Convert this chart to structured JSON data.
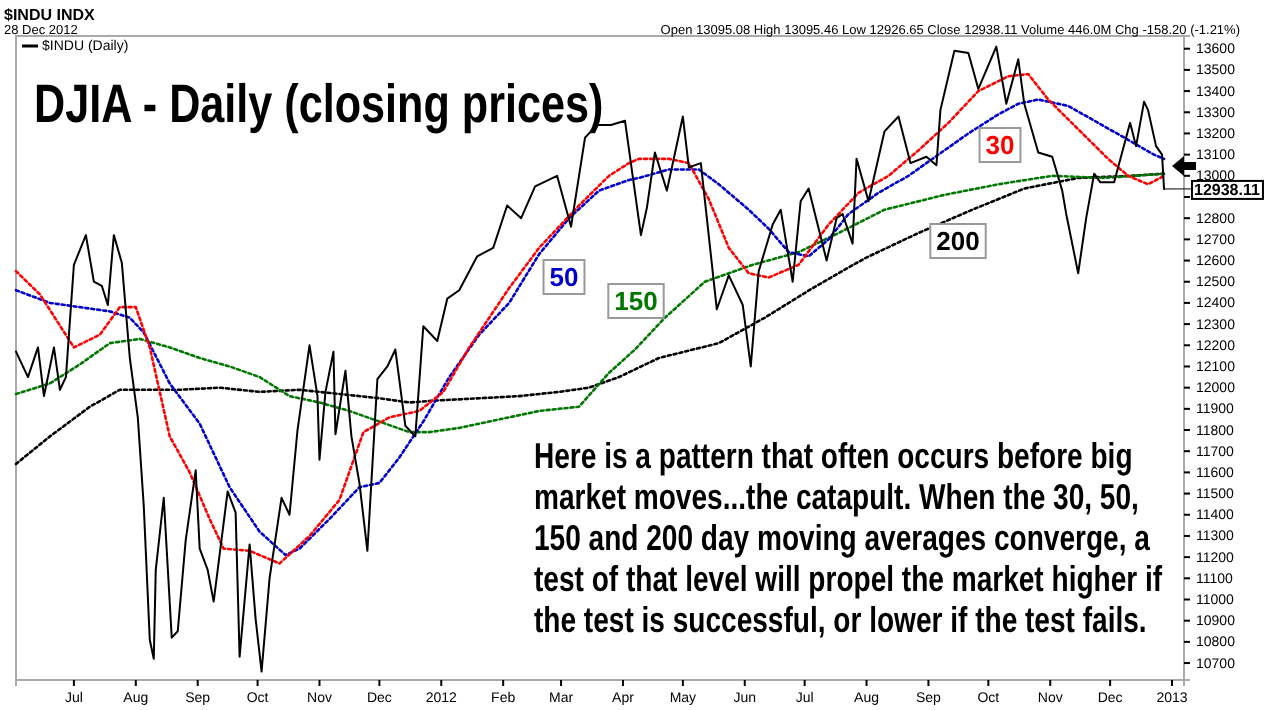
{
  "chart_data": {
    "type": "line",
    "title": "DJIA - Daily (closing prices)",
    "legend": "top left",
    "xlim": [
      "2011-06-02",
      "2013-01-07"
    ],
    "ylim": [
      10620,
      13660
    ],
    "xticks": [
      {
        "value": "2011-07-01",
        "label": "Jul"
      },
      {
        "value": "2011-08-01",
        "label": "Aug"
      },
      {
        "value": "2011-09-01",
        "label": "Sep"
      },
      {
        "value": "2011-10-01",
        "label": "Oct"
      },
      {
        "value": "2011-11-01",
        "label": "Nov"
      },
      {
        "value": "2011-12-01",
        "label": "Dec"
      },
      {
        "value": "2012-01-01",
        "label": "2012"
      },
      {
        "value": "2012-02-01",
        "label": "Feb"
      },
      {
        "value": "2012-03-01",
        "label": "Mar"
      },
      {
        "value": "2012-04-01",
        "label": "Apr"
      },
      {
        "value": "2012-05-01",
        "label": "May"
      },
      {
        "value": "2012-06-01",
        "label": "Jun"
      },
      {
        "value": "2012-07-01",
        "label": "Jul"
      },
      {
        "value": "2012-08-01",
        "label": "Aug"
      },
      {
        "value": "2012-09-01",
        "label": "Sep"
      },
      {
        "value": "2012-10-01",
        "label": "Oct"
      },
      {
        "value": "2012-11-01",
        "label": "Nov"
      },
      {
        "value": "2012-12-01",
        "label": "Dec"
      },
      {
        "value": "2013-01-01",
        "label": "2013"
      }
    ],
    "yticks": [
      10700,
      10800,
      10900,
      11000,
      11100,
      11200,
      11300,
      11400,
      11500,
      11600,
      11700,
      11800,
      11900,
      12000,
      12100,
      12200,
      12300,
      12400,
      12500,
      12600,
      12700,
      12800,
      {
        "value": 12900,
        "label": null
      },
      13000,
      13100,
      13200,
      13300,
      13400,
      13500,
      13600
    ],
    "annotations": [
      "$INDU INDX",
      "28 Dec 2012",
      "Open 13095.08 High 13095.46 Low 12926.65 Close 12938.11 Volume 446.0M Chg -158.20 (-1.21%)",
      "Here is a pattern that often occurs before big market moves...the catapult.  When the 30, 50, 150 and 200 day moving averages converge, a test of that level will propel the market higher if the test is successful, or lower if the test fails.",
      {
        "text": "12938.11",
        "x": "2012-12-28",
        "y": 12938.11
      }
    ],
    "series": [
      {
        "name": "$INDU (Daily)",
        "color": "#000000",
        "line_style": "solid",
        "x": [
          "2011-06-02",
          "2011-06-08",
          "2011-06-13",
          "2011-06-16",
          "2011-06-21",
          "2011-06-24",
          "2011-06-27",
          "2011-07-01",
          "2011-07-07",
          "2011-07-11",
          "2011-07-15",
          "2011-07-18",
          "2011-07-21",
          "2011-07-25",
          "2011-07-29",
          "2011-08-02",
          "2011-08-05",
          "2011-08-08",
          "2011-08-10",
          "2011-08-11",
          "2011-08-15",
          "2011-08-19",
          "2011-08-22",
          "2011-08-26",
          "2011-08-31",
          "2011-09-02",
          "2011-09-06",
          "2011-09-09",
          "2011-09-16",
          "2011-09-20",
          "2011-09-22",
          "2011-09-27",
          "2011-09-30",
          "2011-10-03",
          "2011-10-07",
          "2011-10-13",
          "2011-10-17",
          "2011-10-21",
          "2011-10-27",
          "2011-10-31",
          "2011-11-01",
          "2011-11-04",
          "2011-11-08",
          "2011-11-09",
          "2011-11-14",
          "2011-11-17",
          "2011-11-21",
          "2011-11-25",
          "2011-11-30",
          "2011-12-05",
          "2011-12-09",
          "2011-12-14",
          "2011-12-19",
          "2011-12-23",
          "2011-12-30",
          "2012-01-04",
          "2012-01-10",
          "2012-01-19",
          "2012-01-27",
          "2012-02-03",
          "2012-02-10",
          "2012-02-17",
          "2012-02-28",
          "2012-03-06",
          "2012-03-13",
          "2012-03-19",
          "2012-03-26",
          "2012-04-02",
          "2012-04-10",
          "2012-04-13",
          "2012-04-17",
          "2012-04-23",
          "2012-05-01",
          "2012-05-04",
          "2012-05-10",
          "2012-05-18",
          "2012-05-24",
          "2012-05-31",
          "2012-06-04",
          "2012-06-08",
          "2012-06-15",
          "2012-06-19",
          "2012-06-25",
          "2012-06-29",
          "2012-07-03",
          "2012-07-12",
          "2012-07-17",
          "2012-07-20",
          "2012-07-25",
          "2012-07-27",
          "2012-08-02",
          "2012-08-10",
          "2012-08-17",
          "2012-08-23",
          "2012-08-31",
          "2012-09-05",
          "2012-09-07",
          "2012-09-14",
          "2012-09-21",
          "2012-09-26",
          "2012-10-05",
          "2012-10-10",
          "2012-10-16",
          "2012-10-19",
          "2012-10-26",
          "2012-11-02",
          "2012-11-07",
          "2012-11-09",
          "2012-11-15",
          "2012-11-19",
          "2012-11-23",
          "2012-11-26",
          "2012-12-03",
          "2012-12-11",
          "2012-12-14",
          "2012-12-18",
          "2012-12-20",
          "2012-12-24",
          "2012-12-27",
          "2012-12-28"
        ],
        "values": [
          12170,
          12050,
          12190,
          11960,
          12190,
          11990,
          12050,
          12580,
          12720,
          12500,
          12480,
          12390,
          12720,
          12590,
          12140,
          11860,
          11440,
          10810,
          10720,
          11140,
          11480,
          10820,
          10850,
          11280,
          11610,
          11240,
          11140,
          10990,
          11510,
          11410,
          10730,
          11260,
          10910,
          10660,
          11100,
          11480,
          11400,
          11800,
          12200,
          11960,
          11660,
          11980,
          12170,
          11780,
          12080,
          11770,
          11550,
          11230,
          12040,
          12100,
          12180,
          11820,
          11770,
          12290,
          12220,
          12420,
          12460,
          12620,
          12660,
          12860,
          12800,
          12950,
          13000,
          12760,
          13180,
          13240,
          13240,
          13260,
          12720,
          12850,
          13110,
          12930,
          13280,
          13040,
          13060,
          12370,
          12530,
          12390,
          12100,
          12550,
          12770,
          12840,
          12500,
          12880,
          12940,
          12600,
          12800,
          12820,
          12680,
          13080,
          12880,
          13210,
          13280,
          13060,
          13090,
          13050,
          13310,
          13590,
          13580,
          13410,
          13610,
          13340,
          13550,
          13340,
          13110,
          13090,
          12930,
          12820,
          12540,
          12800,
          13010,
          12970,
          12970,
          13250,
          13140,
          13350,
          13310,
          13140,
          13100,
          12938.11
        ]
      },
      {
        "name": "30",
        "color": "#ff0000",
        "line_style": "dotted",
        "x": [
          "2011-06-02",
          "2011-06-14",
          "2011-07-01",
          "2011-07-14",
          "2011-07-24",
          "2011-08-01",
          "2011-08-08",
          "2011-08-18",
          "2011-08-28",
          "2011-09-07",
          "2011-09-14",
          "2011-09-27",
          "2011-10-12",
          "2011-10-27",
          "2011-11-11",
          "2011-11-23",
          "2011-12-06",
          "2011-12-21",
          "2012-01-02",
          "2012-01-15",
          "2012-02-04",
          "2012-02-19",
          "2012-03-10",
          "2012-03-25",
          "2012-04-04",
          "2012-04-09",
          "2012-04-24",
          "2012-05-04",
          "2012-05-14",
          "2012-05-24",
          "2012-06-03",
          "2012-06-13",
          "2012-06-28",
          "2012-07-13",
          "2012-07-28",
          "2012-08-12",
          "2012-08-27",
          "2012-09-11",
          "2012-09-26",
          "2012-10-11",
          "2012-10-21",
          "2012-10-31",
          "2012-11-15",
          "2012-11-30",
          "2012-12-10",
          "2012-12-20",
          "2012-12-28"
        ],
        "values": [
          12550,
          12440,
          12190,
          12250,
          12380,
          12380,
          12190,
          11770,
          11600,
          11380,
          11240,
          11230,
          11170,
          11300,
          11470,
          11790,
          11860,
          11890,
          11980,
          12190,
          12470,
          12660,
          12860,
          13000,
          13060,
          13080,
          13080,
          13060,
          12890,
          12660,
          12540,
          12520,
          12580,
          12770,
          12920,
          13000,
          13120,
          13250,
          13400,
          13470,
          13480,
          13360,
          13220,
          13080,
          13000,
          12960,
          13000
        ]
      },
      {
        "name": "50",
        "color": "#0000cc",
        "line_style": "dotted",
        "x": [
          "2011-06-02",
          "2011-06-19",
          "2011-07-04",
          "2011-07-19",
          "2011-07-29",
          "2011-08-05",
          "2011-08-18",
          "2011-09-02",
          "2011-09-17",
          "2011-10-02",
          "2011-10-15",
          "2011-10-22",
          "2011-11-06",
          "2011-11-21",
          "2011-12-01",
          "2011-12-11",
          "2011-12-23",
          "2012-01-05",
          "2012-01-20",
          "2012-02-04",
          "2012-02-19",
          "2012-03-05",
          "2012-03-20",
          "2012-04-04",
          "2012-04-09",
          "2012-04-24",
          "2012-05-09",
          "2012-05-19",
          "2012-06-03",
          "2012-06-13",
          "2012-06-23",
          "2012-07-03",
          "2012-07-13",
          "2012-07-23",
          "2012-08-07",
          "2012-08-22",
          "2012-09-06",
          "2012-09-21",
          "2012-10-06",
          "2012-10-16",
          "2012-10-26",
          "2012-11-10",
          "2012-11-25",
          "2012-12-10",
          "2012-12-23",
          "2012-12-28"
        ],
        "values": [
          12460,
          12400,
          12380,
          12360,
          12330,
          12260,
          12020,
          11830,
          11530,
          11320,
          11210,
          11240,
          11380,
          11530,
          11550,
          11670,
          11840,
          12050,
          12250,
          12400,
          12630,
          12800,
          12930,
          12980,
          12990,
          13030,
          13030,
          12960,
          12840,
          12750,
          12640,
          12620,
          12700,
          12820,
          12920,
          13000,
          13100,
          13200,
          13290,
          13340,
          13360,
          13330,
          13250,
          13170,
          13100,
          13080
        ]
      },
      {
        "name": "150",
        "color": "#007700",
        "line_style": "dotted",
        "x": [
          "2011-06-02",
          "2011-06-19",
          "2011-07-04",
          "2011-07-19",
          "2011-08-03",
          "2011-08-18",
          "2011-09-02",
          "2011-09-17",
          "2011-10-02",
          "2011-10-17",
          "2011-11-01",
          "2011-11-16",
          "2011-12-01",
          "2011-12-16",
          "2011-12-26",
          "2012-01-10",
          "2012-01-30",
          "2012-02-19",
          "2012-03-10",
          "2012-03-25",
          "2012-04-07",
          "2012-04-22",
          "2012-05-12",
          "2012-06-05",
          "2012-06-28",
          "2012-07-18",
          "2012-08-10",
          "2012-09-09",
          "2012-10-06",
          "2012-11-02",
          "2012-11-28",
          "2012-12-28"
        ],
        "values": [
          11970,
          12020,
          12110,
          12210,
          12230,
          12190,
          12140,
          12100,
          12050,
          11960,
          11930,
          11890,
          11840,
          11790,
          11790,
          11810,
          11850,
          11890,
          11910,
          12070,
          12180,
          12330,
          12500,
          12580,
          12640,
          12730,
          12840,
          12910,
          12960,
          13000,
          12990,
          13010
        ]
      },
      {
        "name": "200",
        "color": "#000000",
        "line_style": "dotted",
        "x": [
          "2011-06-02",
          "2011-06-19",
          "2011-07-09",
          "2011-07-24",
          "2011-08-03",
          "2011-08-23",
          "2011-09-12",
          "2011-10-02",
          "2011-10-22",
          "2011-11-11",
          "2011-12-01",
          "2011-12-16",
          "2011-12-31",
          "2012-01-20",
          "2012-02-09",
          "2012-02-29",
          "2012-03-15",
          "2012-03-30",
          "2012-04-19",
          "2012-05-19",
          "2012-06-11",
          "2012-07-05",
          "2012-07-31",
          "2012-08-27",
          "2012-09-23",
          "2012-10-19",
          "2012-11-15",
          "2012-12-12",
          "2012-12-28"
        ],
        "values": [
          11640,
          11770,
          11910,
          11990,
          11990,
          11990,
          12000,
          11980,
          11990,
          11970,
          11950,
          11930,
          11940,
          11950,
          11960,
          11980,
          12000,
          12050,
          12140,
          12210,
          12330,
          12470,
          12610,
          12730,
          12840,
          12940,
          12990,
          13000,
          13010
        ]
      }
    ]
  }
}
